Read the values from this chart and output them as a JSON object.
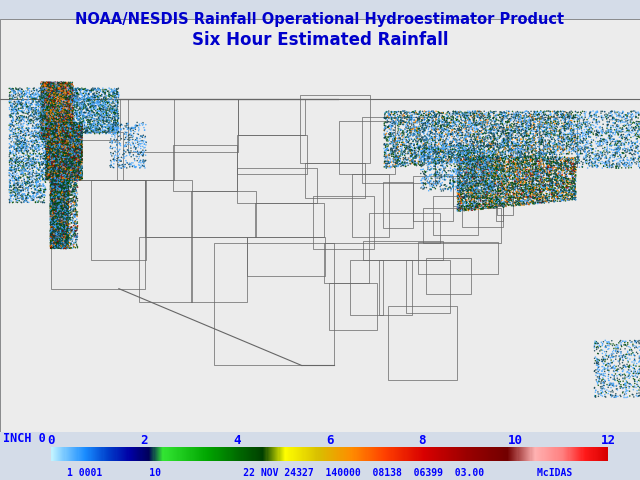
{
  "title_line1": "NOAA/NESDIS Rainfall Operational Hydroestimator Product",
  "title_line2": "Six Hour Estimated Rainfall",
  "title_color": "#0000cc",
  "bg_color": "#d4dce8",
  "land_color": "#ececec",
  "water_color": "#d4dce8",
  "border_color": "#666666",
  "colorbar_segment_colors": [
    "#aaeeff",
    "#66ccff",
    "#2288ff",
    "#0044cc",
    "#0000aa",
    "#000066",
    "#44ee44",
    "#00aa00",
    "#006600",
    "#004400",
    "#ffff00",
    "#cccc00",
    "#ffaa00",
    "#ff6600",
    "#ff2200",
    "#cc0000",
    "#880000",
    "#660000",
    "#ffaaaa",
    "#ff8888",
    "#ff0000",
    "#cc0000"
  ],
  "colorbar_tick_labels": [
    "0",
    "2",
    "4",
    "6",
    "8",
    "10",
    "12"
  ],
  "colorbar_inch_label": "INCH 0",
  "bottom_status": "1 0001        10              22 NOV 24327  140000  08138  06399  03.00         McIDAS",
  "map_extent": [
    -130,
    -60,
    20,
    56
  ],
  "figsize": [
    6.4,
    4.8
  ],
  "dpi": 100,
  "rain_seed": 42
}
